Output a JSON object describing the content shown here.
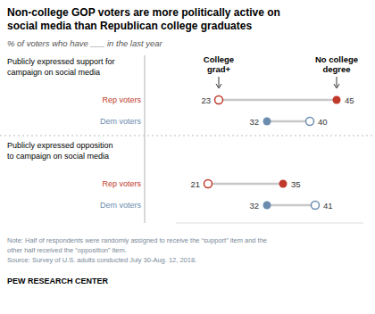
{
  "chart_data": {
    "type": "dumbbell",
    "title": "Non-college GOP voters are more politically active on\nsocial media than Republican college graduates",
    "subtitle": "% of voters who have ___ in the last year",
    "note": "Note: Half of respondents were randomly assigned to receive the “support” item and the\nother half received the “opposition” item.\nSource: Survey of U.S. adults conducted July 30-Aug. 12, 2018.",
    "source": "PEW RESEARCH CENTER",
    "xlim": [
      15,
      50
    ],
    "tick_labels": false,
    "grid": false,
    "data_labels": true,
    "color": "#c8c8c8",
    "series_names": [
      "College\ngrad+",
      "No college\ndegree"
    ],
    "sections": [
      {
        "label": "Publicly expressed support for\ncampaign on social media",
        "categories": [
          "Rep voters",
          "Dem voters"
        ],
        "colors": [
          "#c0392b",
          "#6b8cae"
        ],
        "series": [
          {
            "values": [
              23,
              32
            ],
            "markers": [
              "open",
              "filled"
            ]
          },
          {
            "values": [
              45,
              40
            ],
            "markers": [
              "filled",
              "open"
            ]
          }
        ]
      },
      {
        "label": "Publicly expressed opposition\nto campaign on social media",
        "categories": [
          "Rep voters",
          "Dem voters"
        ],
        "colors": [
          "#c0392b",
          "#6b8cae"
        ],
        "series": [
          {
            "values": [
              21,
              32
            ],
            "markers": [
              "open",
              "filled"
            ]
          },
          {
            "values": [
              35,
              41
            ],
            "markers": [
              "filled",
              "open"
            ]
          }
        ]
      }
    ]
  }
}
